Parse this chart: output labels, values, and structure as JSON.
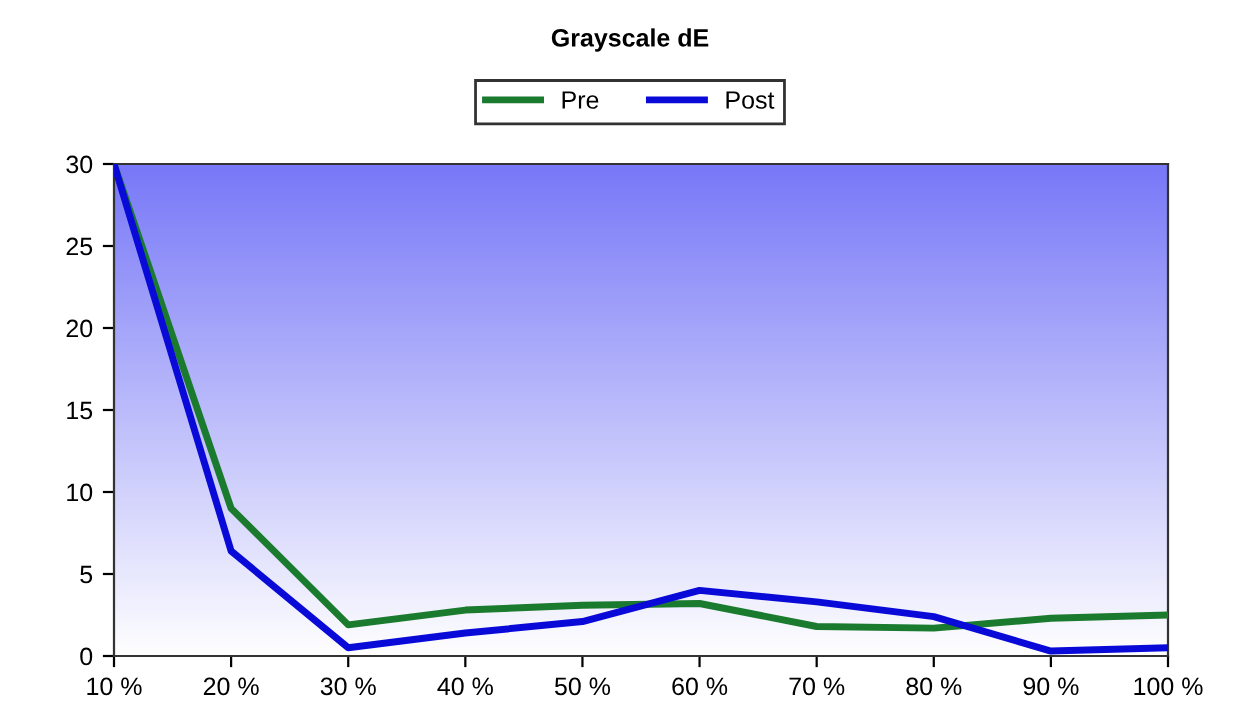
{
  "chart_data": {
    "type": "line",
    "title": "Grayscale dE",
    "x": [
      10,
      20,
      30,
      40,
      50,
      60,
      70,
      80,
      90,
      100
    ],
    "series": [
      {
        "name": "Pre",
        "color": "#1a7a2e",
        "values": [
          30,
          9.0,
          1.9,
          2.8,
          3.1,
          3.2,
          1.8,
          1.7,
          2.3,
          2.5
        ]
      },
      {
        "name": "Post",
        "color": "#0a0ad8",
        "values": [
          30,
          6.4,
          0.5,
          1.4,
          2.1,
          4.0,
          3.3,
          2.4,
          0.3,
          0.5
        ]
      }
    ],
    "xlim": [
      10,
      100
    ],
    "xticks": [
      {
        "value": 10,
        "label": "10 %"
      },
      {
        "value": 20,
        "label": "20 %"
      },
      {
        "value": 30,
        "label": "30 %"
      },
      {
        "value": 40,
        "label": "40 %"
      },
      {
        "value": 50,
        "label": "50 %"
      },
      {
        "value": 60,
        "label": "60 %"
      },
      {
        "value": 70,
        "label": "70 %"
      },
      {
        "value": 80,
        "label": "80 %"
      },
      {
        "value": 90,
        "label": "90 %"
      },
      {
        "value": 100,
        "label": "100 %"
      }
    ],
    "ylim": [
      0,
      30
    ],
    "yticks": [
      0,
      5,
      10,
      15,
      20,
      25,
      30
    ],
    "grid": false,
    "legend": "top",
    "marker": "none",
    "line_style": "solid"
  }
}
